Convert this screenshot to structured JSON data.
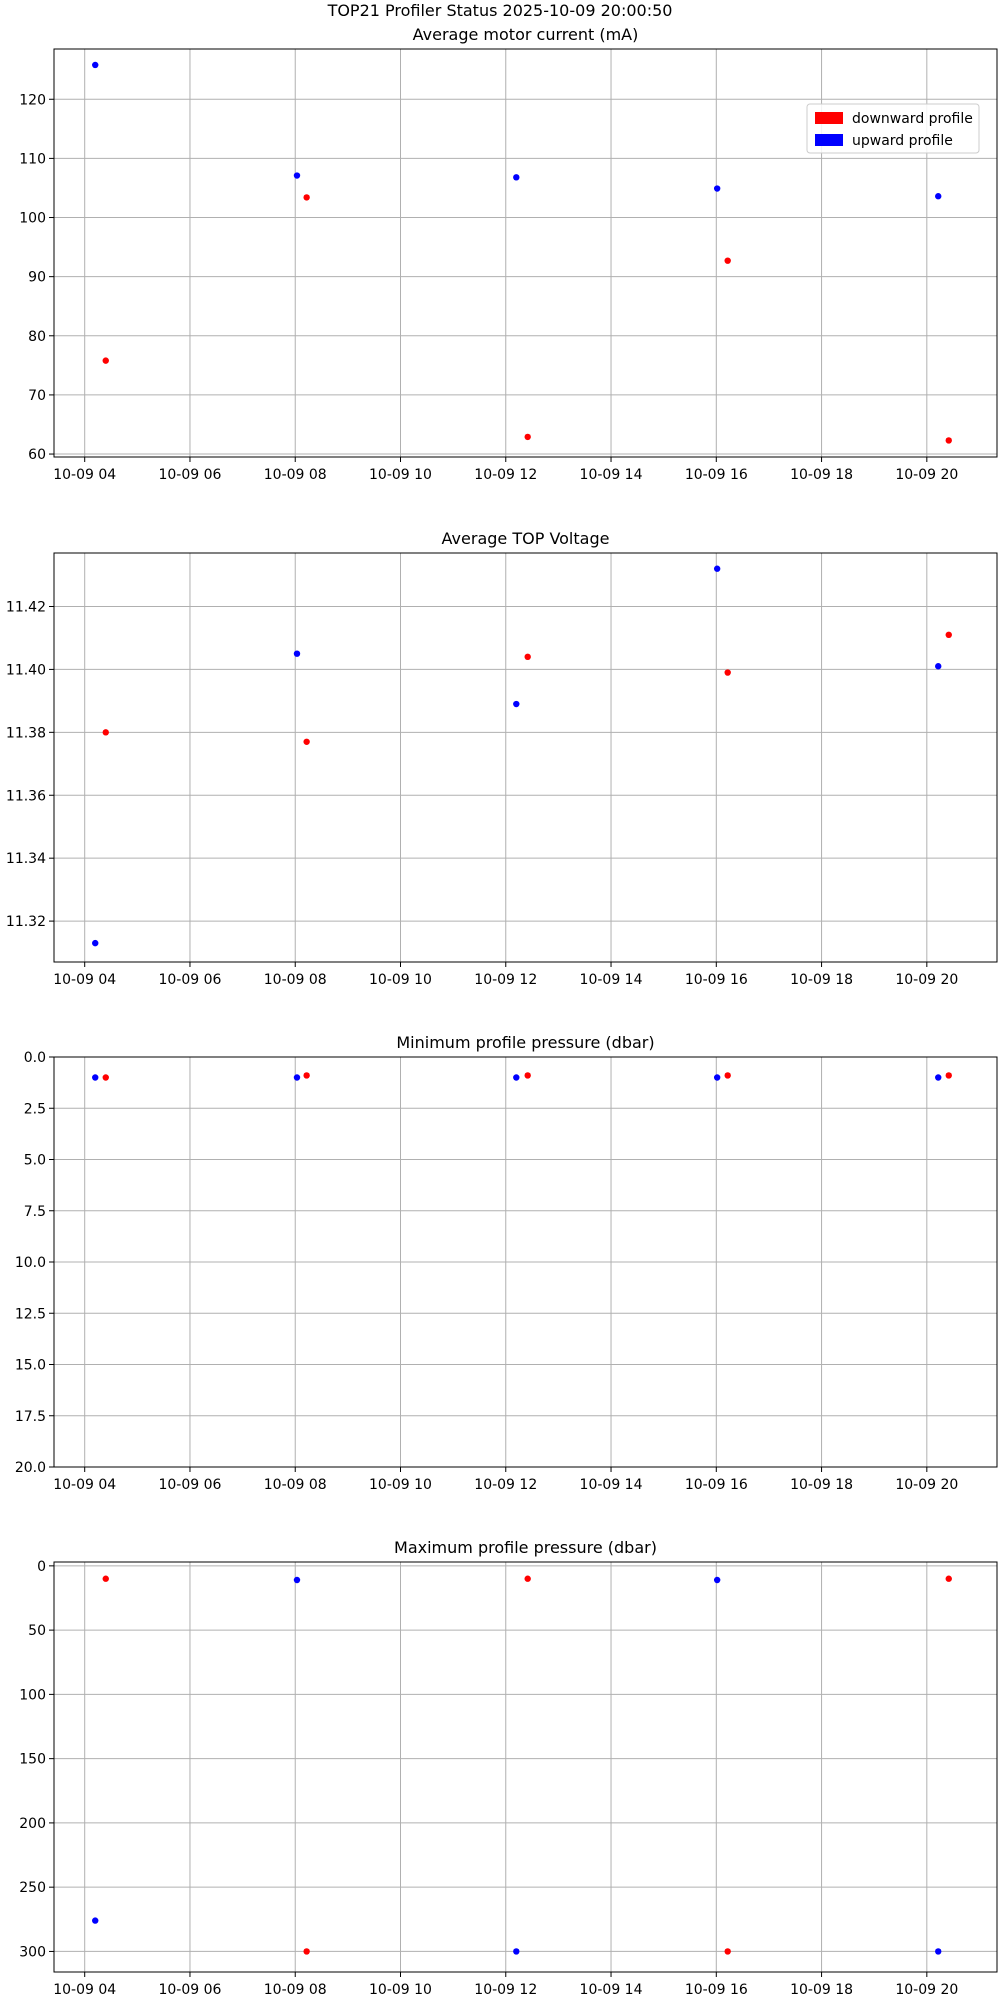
{
  "figure": {
    "suptitle": "TOP21 Profiler Status 2025-10-09 20:00:50"
  },
  "legend": {
    "placement": "upper-right",
    "entries": [
      {
        "label": "downward profile",
        "color": "#ff0000"
      },
      {
        "label": "upward profile",
        "color": "#0000ff"
      }
    ]
  },
  "colors": {
    "down": "#ff0000",
    "up": "#0000ff",
    "grid": "#b0b0b0"
  },
  "x_ticks": [
    "10-09 04",
    "10-09 06",
    "10-09 08",
    "10-09 10",
    "10-09 12",
    "10-09 14",
    "10-09 16",
    "10-09 18",
    "10-09 20"
  ],
  "chart_data": [
    {
      "type": "scatter",
      "title": "Average motor current (mA)",
      "x_unit": "time 2025-10-09",
      "xlim": [
        "2025-10-09 03:25",
        "2025-10-09 21:20"
      ],
      "ylim": [
        59.5,
        128.5
      ],
      "y_inverted": false,
      "y_ticks": [
        "60",
        "70",
        "80",
        "90",
        "100",
        "110",
        "120"
      ],
      "y_tick_values": [
        60,
        70,
        80,
        90,
        100,
        110,
        120
      ],
      "grid": true,
      "legend": true,
      "series": [
        {
          "name": "downward profile",
          "x": [
            "2025-10-09 04:24",
            "2025-10-09 08:13",
            "2025-10-09 12:25",
            "2025-10-09 16:13",
            "2025-10-09 20:25"
          ],
          "values": [
            75.8,
            103.4,
            62.9,
            92.7,
            62.3
          ]
        },
        {
          "name": "upward profile",
          "x": [
            "2025-10-09 04:12",
            "2025-10-09 08:02",
            "2025-10-09 12:12",
            "2025-10-09 16:01",
            "2025-10-09 20:13"
          ],
          "values": [
            125.8,
            107.1,
            106.8,
            104.9,
            103.6
          ]
        }
      ]
    },
    {
      "type": "scatter",
      "title": "Average TOP Voltage",
      "x_unit": "time 2025-10-09",
      "xlim": [
        "2025-10-09 03:25",
        "2025-10-09 21:20"
      ],
      "ylim": [
        11.307,
        11.437
      ],
      "y_inverted": false,
      "y_ticks": [
        "11.32",
        "11.34",
        "11.36",
        "11.38",
        "11.40",
        "11.42"
      ],
      "y_tick_values": [
        11.32,
        11.34,
        11.36,
        11.38,
        11.4,
        11.42
      ],
      "grid": true,
      "legend": false,
      "series": [
        {
          "name": "downward profile",
          "x": [
            "2025-10-09 04:24",
            "2025-10-09 08:13",
            "2025-10-09 12:25",
            "2025-10-09 16:13",
            "2025-10-09 20:25"
          ],
          "values": [
            11.38,
            11.377,
            11.404,
            11.399,
            11.411
          ]
        },
        {
          "name": "upward profile",
          "x": [
            "2025-10-09 04:12",
            "2025-10-09 08:02",
            "2025-10-09 12:12",
            "2025-10-09 16:01",
            "2025-10-09 20:13"
          ],
          "values": [
            11.313,
            11.405,
            11.389,
            11.432,
            11.401
          ]
        }
      ]
    },
    {
      "type": "scatter",
      "title": "Minimum profile pressure (dbar)",
      "x_unit": "time 2025-10-09",
      "xlim": [
        "2025-10-09 03:25",
        "2025-10-09 21:20"
      ],
      "ylim": [
        0,
        20
      ],
      "y_inverted": true,
      "y_ticks": [
        "0.0",
        "2.5",
        "5.0",
        "7.5",
        "10.0",
        "12.5",
        "15.0",
        "17.5",
        "20.0"
      ],
      "y_tick_values": [
        0,
        2.5,
        5,
        7.5,
        10,
        12.5,
        15,
        17.5,
        20
      ],
      "grid": true,
      "legend": false,
      "series": [
        {
          "name": "downward profile",
          "x": [
            "2025-10-09 04:24",
            "2025-10-09 08:13",
            "2025-10-09 12:25",
            "2025-10-09 16:13",
            "2025-10-09 20:25"
          ],
          "values": [
            1.0,
            0.9,
            0.9,
            0.9,
            0.9
          ]
        },
        {
          "name": "upward profile",
          "x": [
            "2025-10-09 04:12",
            "2025-10-09 08:02",
            "2025-10-09 12:12",
            "2025-10-09 16:01",
            "2025-10-09 20:13"
          ],
          "values": [
            1.0,
            1.0,
            1.0,
            1.0,
            1.0
          ]
        }
      ]
    },
    {
      "type": "scatter",
      "title": "Maximum profile pressure (dbar)",
      "x_unit": "time 2025-10-09",
      "xlim": [
        "2025-10-09 03:25",
        "2025-10-09 21:20"
      ],
      "ylim": [
        -3,
        316
      ],
      "y_inverted": true,
      "y_ticks": [
        "0",
        "50",
        "100",
        "150",
        "200",
        "250",
        "300"
      ],
      "y_tick_values": [
        0,
        50,
        100,
        150,
        200,
        250,
        300
      ],
      "grid": true,
      "legend": false,
      "series": [
        {
          "name": "downward profile",
          "x": [
            "2025-10-09 04:24",
            "2025-10-09 08:13",
            "2025-10-09 12:25",
            "2025-10-09 16:13",
            "2025-10-09 20:25"
          ],
          "values": [
            10,
            300,
            10,
            300,
            10
          ]
        },
        {
          "name": "upward profile",
          "x": [
            "2025-10-09 04:12",
            "2025-10-09 08:02",
            "2025-10-09 12:12",
            "2025-10-09 16:01",
            "2025-10-09 20:13"
          ],
          "values": [
            276,
            11,
            300,
            11,
            300
          ]
        }
      ]
    }
  ]
}
